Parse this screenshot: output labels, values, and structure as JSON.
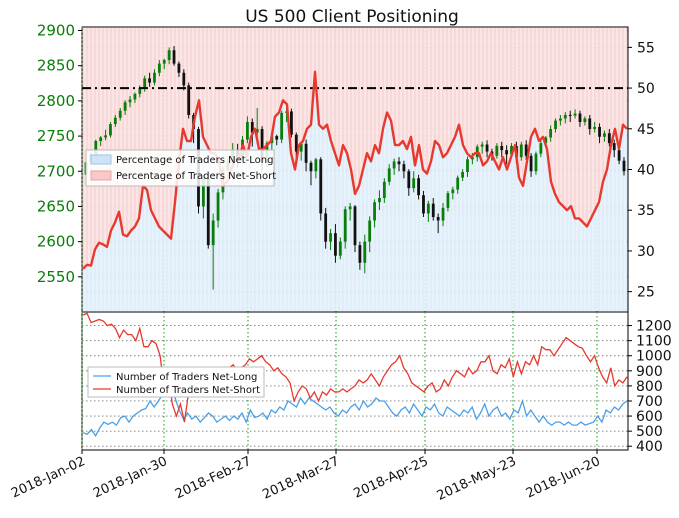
{
  "chart_data": [
    {
      "type": "line",
      "title": "US 500 Client Positioning",
      "y_left_ticks": [
        "2550",
        "2600",
        "2650",
        "2700",
        "2750",
        "2800",
        "2850",
        "2900"
      ],
      "y_left_range": [
        2500,
        2905
      ],
      "y_right_ticks": [
        "25",
        "30",
        "35",
        "40",
        "45",
        "50",
        "55"
      ],
      "y_right_range": [
        22.5,
        57.5
      ],
      "reference_line": 50,
      "legend_placement": "left",
      "legend": [
        "Percentage of Traders Net-Long",
        "Percentage of Traders Net-Short"
      ],
      "x_ticks": [
        "2018-Jan-02",
        "2018-Jan-30",
        "2018-Feb-27",
        "2018-Mar-27",
        "2018-Apr-25",
        "2018-May-23",
        "2018-Jun-20"
      ],
      "series": [
        {
          "name": "Percentage of Traders Net-Short",
          "color": "#e8392f",
          "values": [
            27.8,
            28.3,
            28.2,
            30.2,
            31.0,
            30.8,
            30.5,
            32.5,
            33.5,
            34.8,
            32.0,
            31.8,
            32.5,
            33.0,
            34.0,
            38.0,
            37.5,
            35.0,
            34.0,
            33.0,
            32.5,
            32.0,
            31.5,
            36.0,
            41.0,
            45.0,
            43.5,
            43.5,
            46.5,
            48.5,
            44.0,
            43.0,
            42.0,
            42.0,
            41.0,
            38.0,
            38.5,
            40.0,
            41.0,
            41.5,
            43.0,
            41.5,
            44.0,
            45.0,
            42.5,
            42.5,
            43.0,
            43.5,
            46.5,
            47.0,
            48.5,
            48.0,
            42.0,
            40.0,
            43.0,
            43.5,
            45.0,
            45.5,
            52.0,
            45.5,
            45.0,
            45.5,
            43.5,
            42.0,
            40.5,
            43.0,
            42.0,
            40.0,
            37.0,
            38.0,
            40.0,
            42.0,
            41.0,
            43.0,
            42.0,
            45.0,
            47.0,
            46.0,
            43.0,
            43.0,
            43.5,
            42.5,
            44.0,
            40.5,
            43.0,
            40.0,
            39.5,
            41.0,
            43.5,
            43.0,
            41.5,
            42.0,
            43.0,
            44.0,
            45.5,
            43.0,
            42.0,
            41.5,
            42.0,
            42.0,
            40.5,
            41.0,
            42.0,
            41.0,
            40.0,
            41.5,
            40.0,
            41.5,
            43.0,
            39.0,
            38.0,
            41.0,
            44.0,
            45.0,
            43.5,
            44.0,
            42.5,
            38.5,
            37.0,
            36.0,
            35.5,
            35.0,
            35.5,
            34.0,
            34.0,
            33.5,
            33.0,
            34.0,
            35.0,
            36.0,
            38.5,
            40.0,
            43.0,
            45.0,
            42.5,
            45.5,
            45.0
          ],
          "values_net_long_shading": "100 minus net-short"
        }
      ],
      "candles": [
        [
          2695,
          2713,
          2690,
          2715
        ],
        [
          2713,
          2724,
          2710,
          2727
        ],
        [
          2724,
          2743,
          2720,
          2745
        ],
        [
          2743,
          2748,
          2736,
          2750
        ],
        [
          2748,
          2751,
          2744,
          2759
        ],
        [
          2751,
          2767,
          2748,
          2770
        ],
        [
          2767,
          2776,
          2763,
          2780
        ],
        [
          2776,
          2786,
          2772,
          2790
        ],
        [
          2786,
          2798,
          2780,
          2801
        ],
        [
          2798,
          2802,
          2791,
          2807
        ],
        [
          2802,
          2810,
          2797,
          2812
        ],
        [
          2810,
          2818,
          2805,
          2822
        ],
        [
          2818,
          2832,
          2813,
          2836
        ],
        [
          2832,
          2826,
          2820,
          2840
        ],
        [
          2826,
          2840,
          2822,
          2845
        ],
        [
          2840,
          2853,
          2835,
          2858
        ],
        [
          2853,
          2858,
          2845,
          2860
        ],
        [
          2858,
          2872,
          2852,
          2876
        ],
        [
          2872,
          2853,
          2850,
          2878
        ],
        [
          2853,
          2840,
          2834,
          2856
        ],
        [
          2840,
          2822,
          2815,
          2845
        ],
        [
          2822,
          2780,
          2775,
          2826
        ],
        [
          2780,
          2760,
          2740,
          2783
        ],
        [
          2760,
          2650,
          2640,
          2763
        ],
        [
          2650,
          2690,
          2633,
          2695
        ],
        [
          2690,
          2595,
          2590,
          2700
        ],
        [
          2595,
          2630,
          2532,
          2640
        ],
        [
          2630,
          2670,
          2620,
          2675
        ],
        [
          2670,
          2702,
          2660,
          2708
        ],
        [
          2702,
          2713,
          2690,
          2720
        ],
        [
          2713,
          2731,
          2705,
          2740
        ],
        [
          2731,
          2715,
          2705,
          2739
        ],
        [
          2715,
          2745,
          2710,
          2750
        ],
        [
          2745,
          2770,
          2740,
          2778
        ],
        [
          2770,
          2755,
          2735,
          2775
        ],
        [
          2755,
          2760,
          2748,
          2790
        ],
        [
          2760,
          2712,
          2700,
          2764
        ],
        [
          2712,
          2740,
          2705,
          2743
        ],
        [
          2740,
          2750,
          2730,
          2755
        ],
        [
          2750,
          2745,
          2737,
          2752
        ],
        [
          2745,
          2783,
          2740,
          2786
        ],
        [
          2783,
          2785,
          2770,
          2791
        ],
        [
          2785,
          2752,
          2748,
          2789
        ],
        [
          2752,
          2728,
          2720,
          2755
        ],
        [
          2728,
          2739,
          2715,
          2742
        ],
        [
          2739,
          2712,
          2700,
          2745
        ],
        [
          2712,
          2700,
          2680,
          2715
        ],
        [
          2700,
          2717,
          2690,
          2719
        ],
        [
          2717,
          2640,
          2630,
          2720
        ],
        [
          2640,
          2600,
          2590,
          2648
        ],
        [
          2600,
          2612,
          2588,
          2618
        ],
        [
          2612,
          2580,
          2570,
          2625
        ],
        [
          2580,
          2600,
          2575,
          2606
        ],
        [
          2600,
          2646,
          2590,
          2650
        ],
        [
          2646,
          2650,
          2630,
          2655
        ],
        [
          2650,
          2595,
          2585,
          2652
        ],
        [
          2595,
          2570,
          2560,
          2600
        ],
        [
          2570,
          2600,
          2555,
          2610
        ],
        [
          2600,
          2630,
          2585,
          2636
        ],
        [
          2630,
          2656,
          2620,
          2660
        ],
        [
          2656,
          2662,
          2645,
          2673
        ],
        [
          2662,
          2685,
          2655,
          2690
        ],
        [
          2685,
          2704,
          2680,
          2710
        ],
        [
          2704,
          2714,
          2695,
          2718
        ],
        [
          2714,
          2710,
          2700,
          2720
        ],
        [
          2710,
          2700,
          2690,
          2715
        ],
        [
          2700,
          2676,
          2665,
          2703
        ],
        [
          2676,
          2690,
          2670,
          2700
        ],
        [
          2690,
          2666,
          2660,
          2695
        ],
        [
          2666,
          2640,
          2635,
          2672
        ],
        [
          2640,
          2654,
          2628,
          2658
        ],
        [
          2654,
          2635,
          2630,
          2662
        ],
        [
          2635,
          2630,
          2612,
          2640
        ],
        [
          2630,
          2648,
          2622,
          2655
        ],
        [
          2648,
          2669,
          2643,
          2672
        ],
        [
          2669,
          2674,
          2660,
          2678
        ],
        [
          2674,
          2691,
          2668,
          2694
        ],
        [
          2691,
          2699,
          2686,
          2703
        ],
        [
          2699,
          2717,
          2692,
          2721
        ],
        [
          2717,
          2720,
          2710,
          2726
        ],
        [
          2720,
          2735,
          2714,
          2738
        ],
        [
          2735,
          2738,
          2725,
          2742
        ],
        [
          2738,
          2728,
          2720,
          2744
        ],
        [
          2728,
          2722,
          2715,
          2732
        ],
        [
          2722,
          2736,
          2718,
          2740
        ],
        [
          2736,
          2730,
          2720,
          2742
        ],
        [
          2730,
          2724,
          2710,
          2737
        ],
        [
          2724,
          2736,
          2720,
          2740
        ],
        [
          2736,
          2720,
          2711,
          2742
        ],
        [
          2720,
          2738,
          2715,
          2742
        ],
        [
          2738,
          2722,
          2716,
          2744
        ],
        [
          2722,
          2700,
          2692,
          2726
        ],
        [
          2700,
          2725,
          2695,
          2728
        ],
        [
          2725,
          2740,
          2720,
          2744
        ],
        [
          2740,
          2748,
          2734,
          2750
        ],
        [
          2748,
          2760,
          2742,
          2765
        ],
        [
          2760,
          2772,
          2755,
          2775
        ],
        [
          2772,
          2775,
          2765,
          2780
        ],
        [
          2775,
          2780,
          2768,
          2784
        ],
        [
          2780,
          2779,
          2770,
          2786
        ],
        [
          2779,
          2782,
          2775,
          2788
        ],
        [
          2782,
          2770,
          2763,
          2786
        ],
        [
          2770,
          2775,
          2765,
          2778
        ],
        [
          2775,
          2760,
          2752,
          2780
        ],
        [
          2760,
          2763,
          2755,
          2770
        ],
        [
          2763,
          2749,
          2740,
          2768
        ],
        [
          2749,
          2754,
          2742,
          2758
        ],
        [
          2754,
          2740,
          2735,
          2760
        ],
        [
          2740,
          2730,
          2720,
          2745
        ],
        [
          2730,
          2715,
          2710,
          2735
        ],
        [
          2715,
          2700,
          2694,
          2720
        ]
      ]
    },
    {
      "type": "line",
      "y_ticks": [
        "400",
        "500",
        "600",
        "700",
        "800",
        "900",
        "1000",
        "1100",
        "1200"
      ],
      "y_range": [
        375,
        1290
      ],
      "legend_placement": "left",
      "legend": [
        "Number of Traders Net-Long",
        "Number of Traders Net-Short"
      ],
      "series": [
        {
          "name": "Number of Traders Net-Long",
          "color": "#4a9fe8",
          "values": [
            490,
            480,
            510,
            470,
            520,
            560,
            545,
            560,
            540,
            590,
            600,
            560,
            600,
            620,
            640,
            650,
            700,
            660,
            700,
            740,
            900,
            760,
            720,
            640,
            580,
            620,
            580,
            600,
            560,
            590,
            620,
            600,
            560,
            580,
            600,
            570,
            600,
            580,
            620,
            560,
            640,
            590,
            600,
            620,
            580,
            640,
            620,
            660,
            640,
            700,
            680,
            660,
            720,
            680,
            720,
            700,
            680,
            660,
            640,
            660,
            620,
            600,
            640,
            620,
            660,
            680,
            640,
            700,
            660,
            680,
            720,
            700,
            700,
            660,
            620,
            600,
            640,
            660,
            620,
            680,
            640,
            600,
            660,
            640,
            680,
            620,
            600,
            660,
            640,
            620,
            600,
            640,
            620,
            660,
            580,
            620,
            680,
            600,
            640,
            660,
            600,
            620,
            580,
            640,
            620,
            700,
            600,
            640,
            600,
            560,
            600,
            560,
            540,
            560,
            560,
            540,
            560,
            540,
            540,
            560,
            540,
            550,
            560,
            600,
            560,
            640,
            620,
            660,
            640,
            680,
            700
          ]
        },
        {
          "name": "Number of Traders Net-Short",
          "color": "#e8392f",
          "values": [
            1270,
            1280,
            1220,
            1230,
            1240,
            1230,
            1200,
            1210,
            1180,
            1120,
            1170,
            1140,
            1140,
            1100,
            1180,
            1060,
            1060,
            1100,
            1080,
            1000,
            780,
            880,
            680,
            600,
            680,
            560,
            760,
            800,
            840,
            880,
            900,
            880,
            900,
            920,
            880,
            900,
            920,
            940,
            900,
            920,
            940,
            980,
            960,
            980,
            1000,
            960,
            940,
            900,
            920,
            880,
            860,
            820,
            700,
            760,
            800,
            780,
            720,
            760,
            700,
            760,
            740,
            780,
            760,
            760,
            780,
            760,
            780,
            800,
            840,
            820,
            840,
            880,
            840,
            800,
            860,
            900,
            940,
            960,
            1000,
            920,
            880,
            820,
            800,
            780,
            760,
            800,
            820,
            760,
            780,
            840,
            800,
            860,
            900,
            880,
            860,
            920,
            880,
            900,
            960,
            960,
            1000,
            900,
            880,
            940,
            920,
            980,
            860,
            960,
            880,
            960,
            940,
            1000,
            940,
            1060,
            1040,
            1040,
            1000,
            1040,
            1080,
            1120,
            1100,
            1080,
            1060,
            1050,
            1000,
            960,
            1000,
            920,
            860,
            820,
            920,
            800,
            840,
            820,
            860
          ]
        }
      ]
    }
  ]
}
